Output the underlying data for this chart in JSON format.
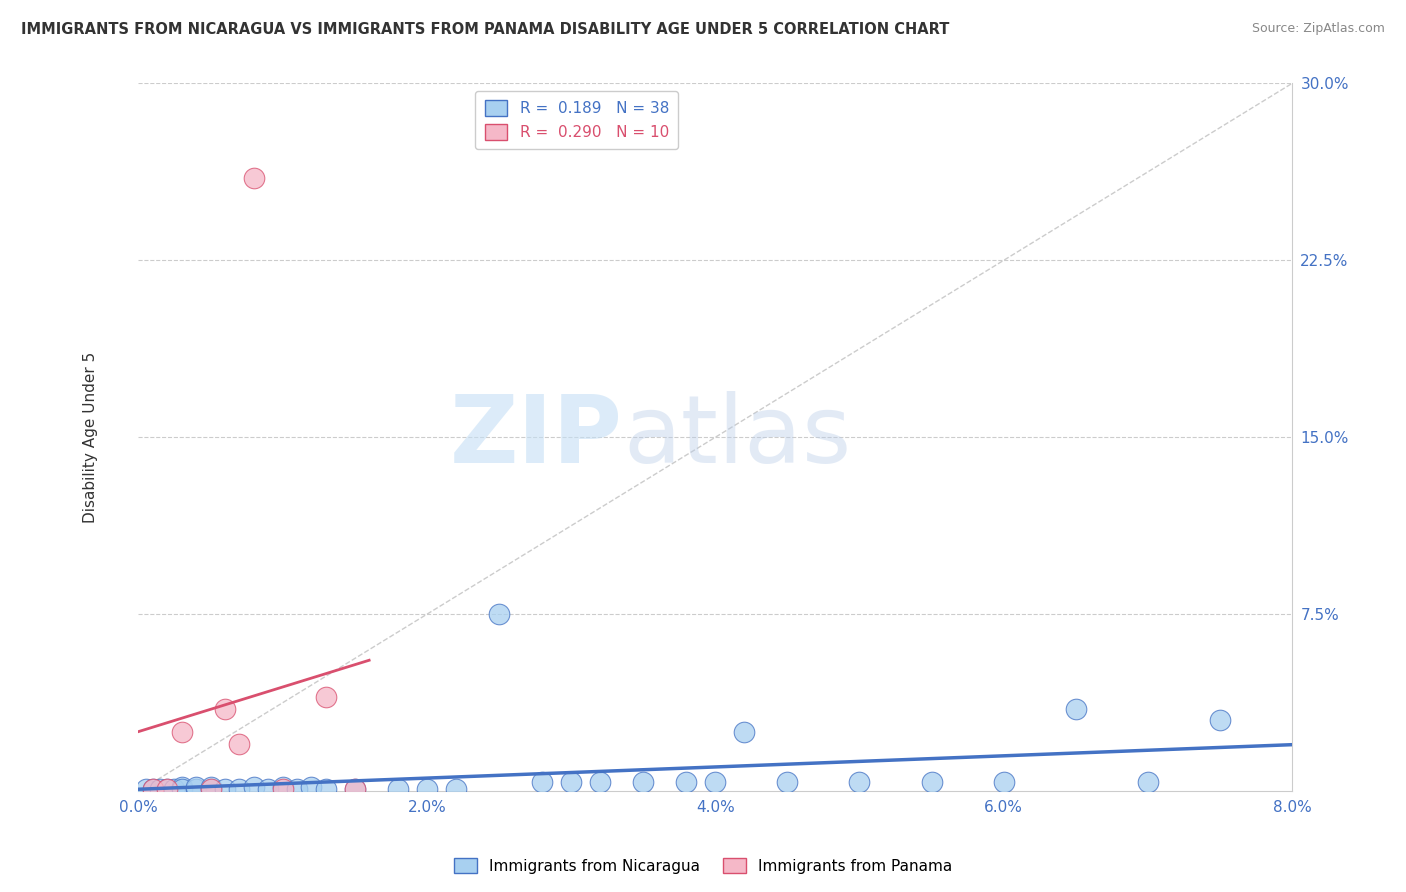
{
  "title": "IMMIGRANTS FROM NICARAGUA VS IMMIGRANTS FROM PANAMA DISABILITY AGE UNDER 5 CORRELATION CHART",
  "source": "Source: ZipAtlas.com",
  "ylabel": "Disability Age Under 5",
  "xlim": [
    0.0,
    0.08
  ],
  "ylim": [
    0.0,
    0.3
  ],
  "xticks": [
    0.0,
    0.02,
    0.04,
    0.06,
    0.08
  ],
  "xticklabels": [
    "0.0%",
    "2.0%",
    "4.0%",
    "6.0%",
    "8.0%"
  ],
  "yticks": [
    0.0,
    0.075,
    0.15,
    0.225,
    0.3
  ],
  "yticklabels": [
    "",
    "7.5%",
    "15.0%",
    "22.5%",
    "30.0%"
  ],
  "nicaragua_color": "#a8d0f0",
  "panama_color": "#f5b8c8",
  "nicaragua_line_color": "#4472c4",
  "panama_line_color": "#d94f6e",
  "grid_color": "#cccccc",
  "background_color": "#ffffff",
  "legend_R_nicaragua": "0.189",
  "legend_N_nicaragua": "38",
  "legend_R_panama": "0.290",
  "legend_N_panama": "10",
  "watermark_zip": "ZIP",
  "watermark_atlas": "atlas",
  "nicaragua_x": [
    0.0005,
    0.001,
    0.0015,
    0.002,
    0.0025,
    0.003,
    0.003,
    0.004,
    0.004,
    0.005,
    0.005,
    0.006,
    0.007,
    0.008,
    0.009,
    0.01,
    0.011,
    0.012,
    0.013,
    0.015,
    0.018,
    0.02,
    0.022,
    0.025,
    0.028,
    0.03,
    0.032,
    0.035,
    0.038,
    0.04,
    0.042,
    0.045,
    0.05,
    0.055,
    0.06,
    0.065,
    0.07,
    0.075
  ],
  "nicaragua_y": [
    0.001,
    0.001,
    0.001,
    0.001,
    0.001,
    0.002,
    0.001,
    0.001,
    0.002,
    0.001,
    0.002,
    0.001,
    0.001,
    0.002,
    0.001,
    0.002,
    0.001,
    0.002,
    0.001,
    0.001,
    0.001,
    0.001,
    0.001,
    0.075,
    0.004,
    0.004,
    0.004,
    0.004,
    0.004,
    0.004,
    0.025,
    0.004,
    0.004,
    0.004,
    0.004,
    0.035,
    0.004,
    0.03
  ],
  "panama_x": [
    0.001,
    0.002,
    0.003,
    0.005,
    0.006,
    0.007,
    0.008,
    0.01,
    0.013,
    0.015
  ],
  "panama_y": [
    0.001,
    0.001,
    0.025,
    0.001,
    0.035,
    0.02,
    0.26,
    0.001,
    0.04,
    0.001
  ]
}
